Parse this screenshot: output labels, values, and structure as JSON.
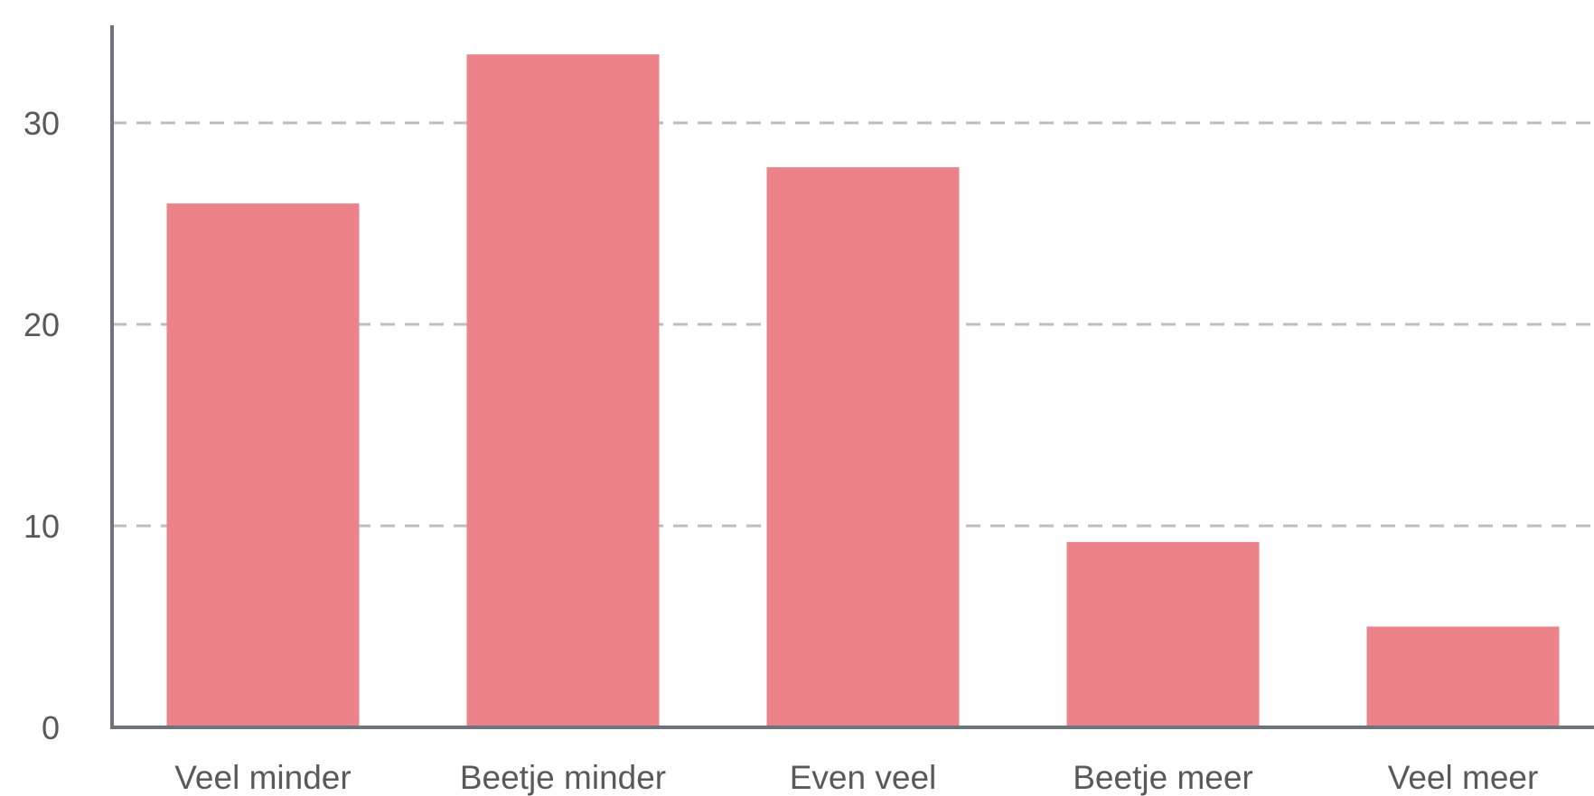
{
  "chart_data": {
    "type": "bar",
    "categories": [
      "Veel minder",
      "Beetje minder",
      "Even veel",
      "Beetje meer",
      "Veel meer"
    ],
    "values": [
      26,
      33.4,
      27.8,
      9.2,
      5
    ],
    "ylim": [
      0,
      35
    ],
    "yticks": [
      0,
      10,
      20,
      30
    ],
    "grid": true,
    "colors": {
      "bar": "#ec838b",
      "axis": "#6e747c",
      "grid": "#bdbdbd",
      "tick_text": "#595959"
    }
  }
}
